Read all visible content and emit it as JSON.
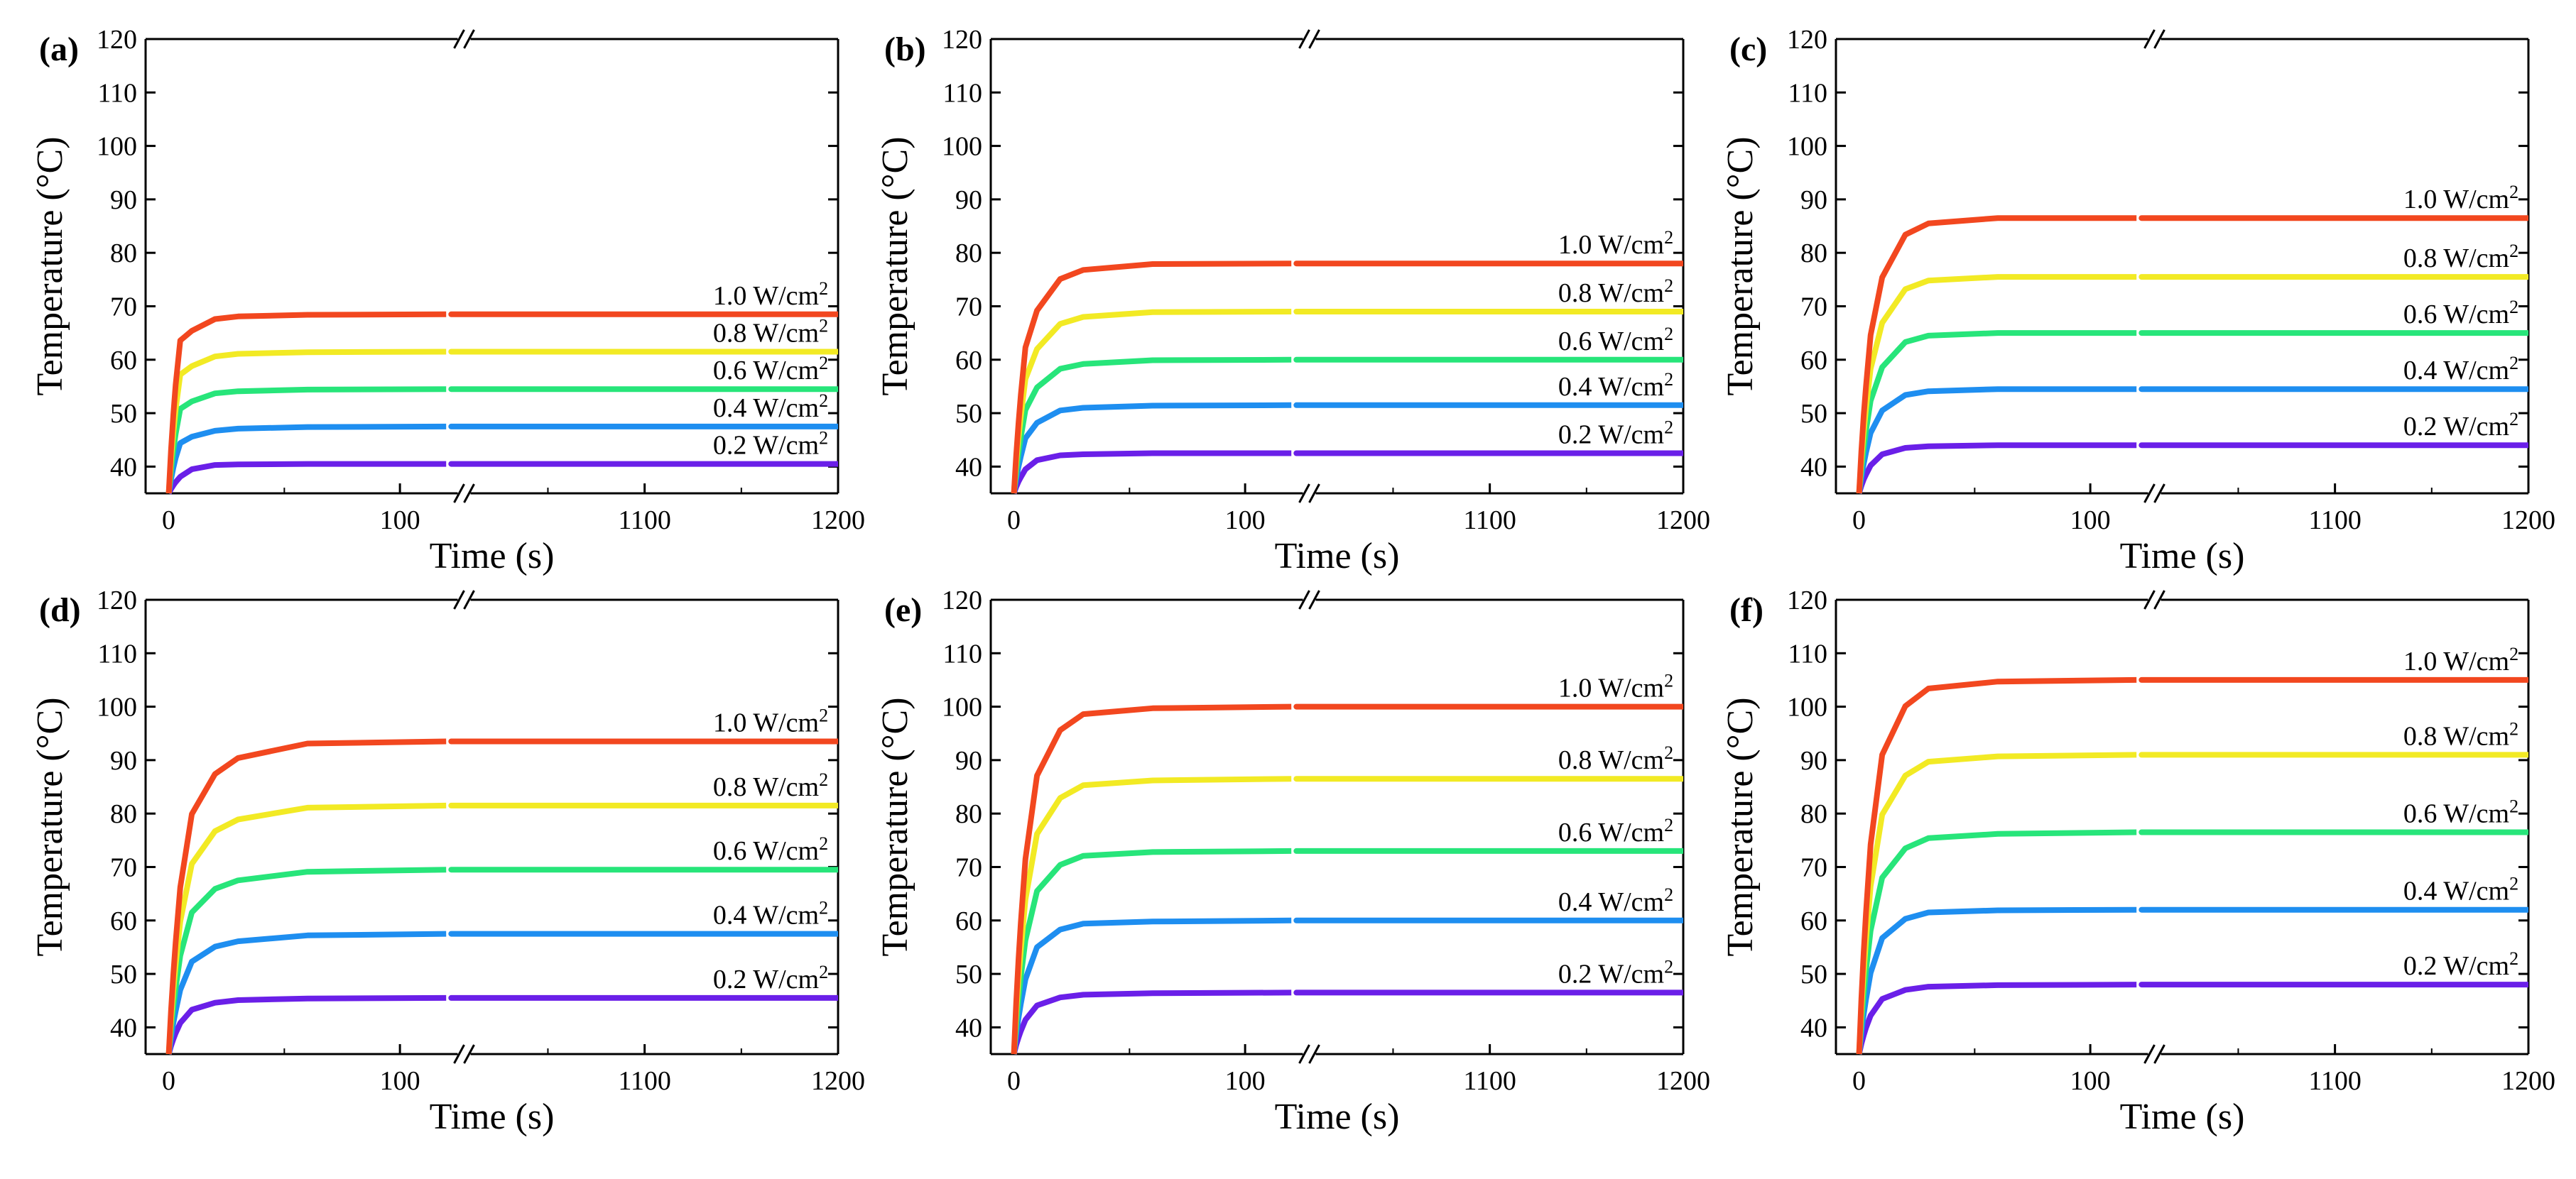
{
  "figure": {
    "background": "#ffffff"
  },
  "common": {
    "xlabel": "Time (s)",
    "ylabel": "Temperature (°C)",
    "ylim": [
      35,
      120
    ],
    "yticks": [
      40,
      50,
      60,
      70,
      80,
      90,
      100,
      110,
      120
    ],
    "x_left_range": [
      -10,
      125
    ],
    "x_left_ticks": [
      0,
      100
    ],
    "x_right_range": [
      1010,
      1200
    ],
    "x_right_ticks": [
      1100,
      1200
    ],
    "time_points": [
      0,
      1,
      2,
      3,
      5,
      10,
      20,
      30,
      60,
      120,
      1000,
      1200
    ],
    "break_mark": "//",
    "series_colors": {
      "0.2 W/cm2": "#6a1fe8",
      "0.4 W/cm2": "#1e8ef0",
      "0.6 W/cm2": "#27e57a",
      "0.8 W/cm2": "#f2ea24",
      "1.0 W/cm2": "#f2471f"
    }
  },
  "chart_data": [
    {
      "type": "line",
      "panel": "(a)",
      "title": "",
      "xlabel": "Time (s)",
      "ylabel": "Temperature (°C)",
      "ylim": [
        35,
        120
      ],
      "series": [
        {
          "name": "0.2 W/cm2",
          "label_prefix": "0.2 W/cm",
          "label_sup": "2",
          "final": 40.5,
          "fast": 0.7,
          "values": [
            35.0,
            35.8,
            36.5,
            37.1,
            38.1,
            39.5,
            40.3,
            40.4,
            40.5,
            40.5,
            40.5,
            40.5
          ]
        },
        {
          "name": "0.4 W/cm2",
          "label_prefix": "0.4 W/cm",
          "label_sup": "2",
          "final": 47.5,
          "fast": 0.7,
          "values": [
            35.0,
            37.6,
            39.8,
            41.6,
            44.4,
            45.6,
            46.7,
            47.1,
            47.4,
            47.5,
            47.5,
            47.5
          ]
        },
        {
          "name": "0.6 W/cm2",
          "label_prefix": "0.6 W/cm",
          "label_sup": "2",
          "final": 54.5,
          "fast": 0.7,
          "values": [
            35.0,
            39.4,
            43.1,
            46.1,
            50.8,
            52.2,
            53.7,
            54.1,
            54.4,
            54.5,
            54.5,
            54.5
          ]
        },
        {
          "name": "0.8 W/cm2",
          "label_prefix": "0.8 W/cm",
          "label_sup": "2",
          "final": 61.5,
          "fast": 0.7,
          "values": [
            35.0,
            41.3,
            46.4,
            50.7,
            57.2,
            58.8,
            60.6,
            61.1,
            61.4,
            61.5,
            61.5,
            61.5
          ]
        },
        {
          "name": "1.0 W/cm2",
          "label_prefix": "1.0 W/cm",
          "label_sup": "2",
          "final": 68.5,
          "fast": 0.7,
          "values": [
            35.0,
            43.1,
            49.8,
            55.3,
            63.6,
            65.4,
            67.6,
            68.1,
            68.4,
            68.5,
            68.5,
            68.5
          ]
        }
      ]
    },
    {
      "type": "line",
      "panel": "(b)",
      "title": "",
      "xlabel": "Time (s)",
      "ylabel": "Temperature (°C)",
      "ylim": [
        35,
        120
      ],
      "series": [
        {
          "name": "0.2 W/cm2",
          "label_prefix": "0.2 W/cm",
          "label_sup": "2",
          "final": 42.5,
          "fast": 0.65,
          "values": [
            35.0,
            36.2,
            37.2,
            38.0,
            39.5,
            41.2,
            42.1,
            42.3,
            42.5,
            42.5,
            42.5,
            42.5
          ]
        },
        {
          "name": "0.4 W/cm2",
          "label_prefix": "0.4 W/cm",
          "label_sup": "2",
          "final": 51.5,
          "fast": 0.65,
          "values": [
            35.0,
            37.7,
            40.0,
            41.9,
            45.3,
            48.2,
            50.5,
            51.0,
            51.4,
            51.5,
            51.5,
            51.5
          ]
        },
        {
          "name": "0.6 W/cm2",
          "label_prefix": "0.6 W/cm",
          "label_sup": "2",
          "final": 60.0,
          "fast": 0.65,
          "values": [
            35.0,
            39.1,
            42.6,
            45.5,
            50.6,
            54.8,
            58.3,
            59.2,
            59.9,
            60.0,
            60.0,
            60.0
          ]
        },
        {
          "name": "0.8 W/cm2",
          "label_prefix": "0.8 W/cm",
          "label_sup": "2",
          "final": 69.0,
          "fast": 0.65,
          "values": [
            35.0,
            40.6,
            45.4,
            49.4,
            56.4,
            62.0,
            66.7,
            68.0,
            68.9,
            69.0,
            69.0,
            69.0
          ]
        },
        {
          "name": "1.0 W/cm2",
          "label_prefix": "1.0 W/cm",
          "label_sup": "2",
          "final": 78.0,
          "fast": 0.65,
          "values": [
            35.0,
            42.1,
            48.2,
            53.4,
            62.3,
            69.2,
            75.1,
            76.8,
            77.9,
            78.0,
            78.0,
            78.0
          ]
        }
      ]
    },
    {
      "type": "line",
      "panel": "(c)",
      "title": "",
      "xlabel": "Time (s)",
      "ylabel": "Temperature (°C)",
      "ylim": [
        35,
        120
      ],
      "series": [
        {
          "name": "0.2 W/cm2",
          "label_prefix": "0.2 W/cm",
          "label_sup": "2",
          "final": 44.0,
          "fast": 0.6,
          "values": [
            35.0,
            36.4,
            37.6,
            38.5,
            40.2,
            42.3,
            43.5,
            43.8,
            44.0,
            44.0,
            44.0,
            44.0
          ]
        },
        {
          "name": "0.4 W/cm2",
          "label_prefix": "0.4 W/cm",
          "label_sup": "2",
          "final": 54.5,
          "fast": 0.6,
          "values": [
            35.0,
            38.0,
            40.5,
            42.6,
            46.3,
            50.5,
            53.4,
            54.1,
            54.5,
            54.5,
            54.5,
            54.5
          ]
        },
        {
          "name": "0.6 W/cm2",
          "label_prefix": "0.6 W/cm",
          "label_sup": "2",
          "final": 65.0,
          "fast": 0.6,
          "values": [
            35.0,
            39.6,
            43.5,
            46.7,
            52.3,
            58.6,
            63.3,
            64.5,
            65.0,
            65.0,
            65.0,
            65.0
          ]
        },
        {
          "name": "0.8 W/cm2",
          "label_prefix": "0.8 W/cm",
          "label_sup": "2",
          "final": 75.5,
          "fast": 0.6,
          "values": [
            35.0,
            41.3,
            46.5,
            50.8,
            58.3,
            66.9,
            73.2,
            74.8,
            75.5,
            75.5,
            75.5,
            75.5
          ]
        },
        {
          "name": "1.0 W/cm2",
          "label_prefix": "1.0 W/cm",
          "label_sup": "2",
          "final": 86.5,
          "fast": 0.6,
          "values": [
            35.0,
            42.9,
            49.6,
            55.0,
            64.6,
            75.4,
            83.4,
            85.5,
            86.5,
            86.5,
            86.5,
            86.5
          ]
        }
      ]
    },
    {
      "type": "line",
      "panel": "(d)",
      "title": "",
      "xlabel": "Time (s)",
      "ylabel": "Temperature (°C)",
      "ylim": [
        35,
        120
      ],
      "series": [
        {
          "name": "0.2 W/cm2",
          "label_prefix": "0.2 W/cm",
          "label_sup": "2",
          "final": 45.5,
          "fast": 0.55,
          "values": [
            35.0,
            36.5,
            37.8,
            38.9,
            40.8,
            43.3,
            44.6,
            45.1,
            45.4,
            45.5,
            45.5,
            45.5
          ]
        },
        {
          "name": "0.4 W/cm2",
          "label_prefix": "0.4 W/cm",
          "label_sup": "2",
          "final": 57.5,
          "fast": 0.55,
          "values": [
            35.0,
            38.1,
            40.8,
            43.0,
            47.0,
            52.3,
            55.1,
            56.1,
            57.2,
            57.5,
            57.5,
            57.5
          ]
        },
        {
          "name": "0.6 W/cm2",
          "label_prefix": "0.6 W/cm",
          "label_sup": "2",
          "final": 69.5,
          "fast": 0.55,
          "values": [
            35.0,
            39.8,
            43.9,
            47.3,
            53.4,
            61.5,
            65.9,
            67.5,
            69.1,
            69.5,
            69.5,
            69.5
          ]
        },
        {
          "name": "0.8 W/cm2",
          "label_prefix": "0.8 W/cm",
          "label_sup": "2",
          "final": 81.5,
          "fast": 0.55,
          "values": [
            35.0,
            41.4,
            47.0,
            51.6,
            59.8,
            70.6,
            76.7,
            78.9,
            81.1,
            81.5,
            81.5,
            81.5
          ]
        },
        {
          "name": "1.0 W/cm2",
          "label_prefix": "1.0 W/cm",
          "label_sup": "2",
          "final": 93.5,
          "fast": 0.55,
          "values": [
            35.0,
            43.1,
            50.0,
            55.9,
            66.2,
            79.9,
            87.4,
            90.4,
            93.1,
            93.5,
            93.5,
            93.5
          ]
        }
      ]
    },
    {
      "type": "line",
      "panel": "(e)",
      "title": "",
      "xlabel": "Time (s)",
      "ylabel": "Temperature (°C)",
      "ylim": [
        35,
        120
      ],
      "series": [
        {
          "name": "0.2 W/cm2",
          "label_prefix": "0.2 W/cm",
          "label_sup": "2",
          "final": 46.5,
          "fast": 0.55,
          "values": [
            35.0,
            36.7,
            38.1,
            39.3,
            41.4,
            44.1,
            45.6,
            46.1,
            46.4,
            46.5,
            46.5,
            46.5
          ]
        },
        {
          "name": "0.4 W/cm2",
          "label_prefix": "0.4 W/cm",
          "label_sup": "2",
          "final": 60.0,
          "fast": 0.55,
          "values": [
            35.0,
            38.7,
            41.8,
            44.4,
            49.0,
            55.0,
            58.3,
            59.4,
            59.8,
            60.0,
            60.0,
            60.0
          ]
        },
        {
          "name": "0.6 W/cm2",
          "label_prefix": "0.6 W/cm",
          "label_sup": "2",
          "final": 73.0,
          "fast": 0.55,
          "values": [
            35.0,
            40.6,
            45.4,
            49.4,
            56.3,
            65.5,
            70.4,
            72.1,
            72.8,
            73.0,
            73.0,
            73.0
          ]
        },
        {
          "name": "0.8 W/cm2",
          "label_prefix": "0.8 W/cm",
          "label_sup": "2",
          "final": 86.5,
          "fast": 0.55,
          "values": [
            35.0,
            42.6,
            49.1,
            54.5,
            63.9,
            76.2,
            82.9,
            85.3,
            86.2,
            86.5,
            86.5,
            86.5
          ]
        },
        {
          "name": "1.0 W/cm2",
          "label_prefix": "1.0 W/cm",
          "label_sup": "2",
          "final": 100.0,
          "fast": 0.55,
          "values": [
            35.0,
            44.6,
            52.8,
            59.6,
            71.5,
            87.1,
            95.6,
            98.6,
            99.7,
            100.0,
            100.0,
            100.0
          ]
        }
      ]
    },
    {
      "type": "line",
      "panel": "(f)",
      "title": "",
      "xlabel": "Time (s)",
      "ylabel": "Temperature (°C)",
      "ylim": [
        35,
        120
      ],
      "series": [
        {
          "name": "0.2 W/cm2",
          "label_prefix": "0.2 W/cm",
          "label_sup": "2",
          "final": 48.0,
          "fast": 0.55,
          "values": [
            35.0,
            36.9,
            38.5,
            39.9,
            42.2,
            45.3,
            47.0,
            47.6,
            47.9,
            48.0,
            48.0,
            48.0
          ]
        },
        {
          "name": "0.4 W/cm2",
          "label_prefix": "0.4 W/cm",
          "label_sup": "2",
          "final": 62.0,
          "fast": 0.55,
          "values": [
            35.0,
            39.0,
            42.4,
            45.2,
            50.2,
            56.7,
            60.3,
            61.5,
            61.9,
            62.0,
            62.0,
            62.0
          ]
        },
        {
          "name": "0.6 W/cm2",
          "label_prefix": "0.6 W/cm",
          "label_sup": "2",
          "final": 76.5,
          "fast": 0.55,
          "values": [
            35.0,
            41.1,
            46.3,
            50.6,
            58.1,
            68.0,
            73.5,
            75.4,
            76.2,
            76.5,
            76.5,
            76.5
          ]
        },
        {
          "name": "0.8 W/cm2",
          "label_prefix": "0.8 W/cm",
          "label_sup": "2",
          "final": 91.0,
          "fast": 0.55,
          "values": [
            35.0,
            43.3,
            50.3,
            56.2,
            66.4,
            79.8,
            87.1,
            89.7,
            90.7,
            91.0,
            91.0,
            91.0
          ]
        },
        {
          "name": "1.0 W/cm2",
          "label_prefix": "1.0 W/cm",
          "label_sup": "2",
          "final": 105.0,
          "fast": 0.55,
          "values": [
            35.0,
            45.3,
            54.1,
            61.4,
            74.2,
            91.0,
            100.1,
            103.4,
            104.7,
            105.0,
            105.0,
            105.0
          ]
        }
      ]
    }
  ]
}
